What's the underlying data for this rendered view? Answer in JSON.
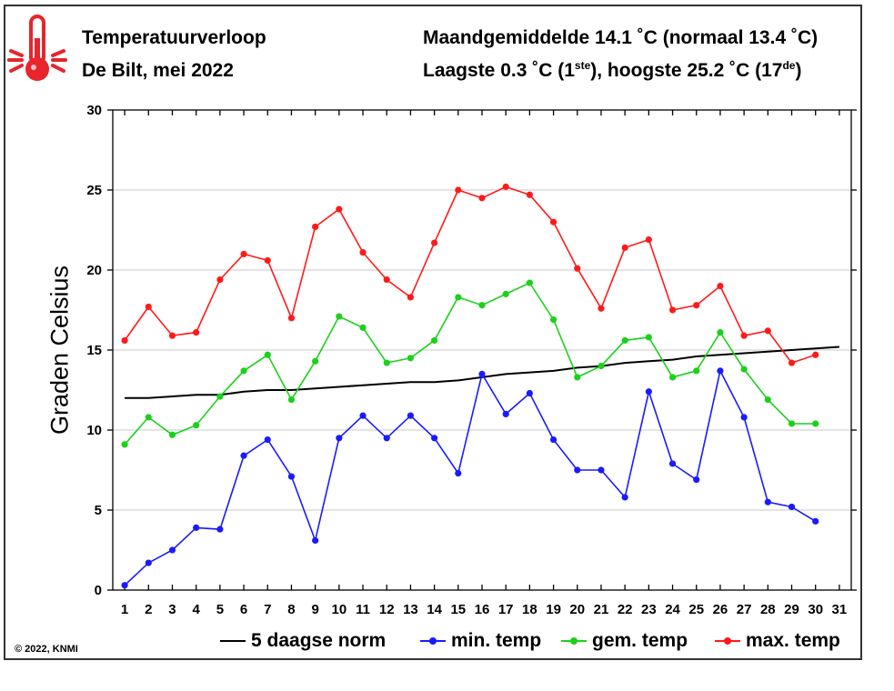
{
  "header": {
    "title": "Temperatuurverloop",
    "subtitle": "De Bilt, mei 2022",
    "summary_line1": "Maandgemiddelde 14.1 ˚C (normaal 13.4 ˚C)",
    "summary_line2_a": "Laagste 0.3 ˚C (1",
    "summary_line2_sup1": "ste",
    "summary_line2_b": "), hoogste 25.2 ˚C (17",
    "summary_line2_sup2": "de",
    "summary_line2_c": ")"
  },
  "icon": {
    "name": "thermometer-icon",
    "color": "#e8242c"
  },
  "copyright": "© 2022, KNMI",
  "legend": {
    "norm": "5 daagse norm",
    "min": "min. temp",
    "gem": "gem. temp",
    "max": "max. temp"
  },
  "chart_data": {
    "type": "line",
    "ylabel": "Graden Celsius",
    "xlabel": "",
    "xlim": [
      0.5,
      31.5
    ],
    "ylim": [
      0,
      30
    ],
    "yticks": [
      0,
      5,
      10,
      15,
      20,
      25,
      30
    ],
    "categories": [
      "1",
      "2",
      "3",
      "4",
      "5",
      "6",
      "7",
      "8",
      "9",
      "10",
      "11",
      "12",
      "13",
      "14",
      "15",
      "16",
      "17",
      "18",
      "19",
      "20",
      "21",
      "22",
      "23",
      "24",
      "25",
      "26",
      "27",
      "28",
      "29",
      "30",
      "31"
    ],
    "grid": true,
    "series": [
      {
        "name": "5 daagse norm",
        "color": "#000000",
        "markers": false,
        "x": [
          1,
          2,
          3,
          4,
          5,
          6,
          7,
          8,
          9,
          10,
          11,
          12,
          13,
          14,
          15,
          16,
          17,
          18,
          19,
          20,
          21,
          22,
          23,
          24,
          25,
          26,
          27,
          28,
          29,
          30,
          31
        ],
        "values": [
          12.0,
          12.0,
          12.1,
          12.2,
          12.2,
          12.4,
          12.5,
          12.5,
          12.6,
          12.7,
          12.8,
          12.9,
          13.0,
          13.0,
          13.1,
          13.3,
          13.5,
          13.6,
          13.7,
          13.9,
          14.0,
          14.2,
          14.3,
          14.4,
          14.6,
          14.7,
          14.8,
          14.9,
          15.0,
          15.1,
          15.2
        ]
      },
      {
        "name": "min. temp",
        "color": "#1a1aff",
        "markers": true,
        "x": [
          1,
          2,
          3,
          4,
          5,
          6,
          7,
          8,
          9,
          10,
          11,
          12,
          13,
          14,
          15,
          16,
          17,
          18,
          19,
          20,
          21,
          22,
          23,
          24,
          25,
          26,
          27,
          28,
          29,
          30
        ],
        "values": [
          0.3,
          1.7,
          2.5,
          3.9,
          3.8,
          8.4,
          9.4,
          7.1,
          3.1,
          9.5,
          10.9,
          9.5,
          10.9,
          9.5,
          7.3,
          13.5,
          11.0,
          12.3,
          9.4,
          7.5,
          7.5,
          5.8,
          12.4,
          7.9,
          6.9,
          13.7,
          10.8,
          5.5,
          5.2,
          4.3
        ]
      },
      {
        "name": "gem. temp",
        "color": "#1bd11b",
        "markers": true,
        "x": [
          1,
          2,
          3,
          4,
          5,
          6,
          7,
          8,
          9,
          10,
          11,
          12,
          13,
          14,
          15,
          16,
          17,
          18,
          19,
          20,
          21,
          22,
          23,
          24,
          25,
          26,
          27,
          28,
          29,
          30
        ],
        "values": [
          9.1,
          10.8,
          9.7,
          10.3,
          12.1,
          13.7,
          14.7,
          11.9,
          14.3,
          17.1,
          16.4,
          14.2,
          14.5,
          15.6,
          18.3,
          17.8,
          18.5,
          19.2,
          16.9,
          13.3,
          14.0,
          15.6,
          15.8,
          13.3,
          13.7,
          16.1,
          13.8,
          11.9,
          10.4,
          10.4
        ]
      },
      {
        "name": "max. temp",
        "color": "#ff1a1a",
        "markers": true,
        "x": [
          1,
          2,
          3,
          4,
          5,
          6,
          7,
          8,
          9,
          10,
          11,
          12,
          13,
          14,
          15,
          16,
          17,
          18,
          19,
          20,
          21,
          22,
          23,
          24,
          25,
          26,
          27,
          28,
          29,
          30
        ],
        "values": [
          15.6,
          17.7,
          15.9,
          16.1,
          19.4,
          21.0,
          20.6,
          17.0,
          22.7,
          23.8,
          21.1,
          19.4,
          18.3,
          21.7,
          25.0,
          24.5,
          25.2,
          24.7,
          23.0,
          20.1,
          17.6,
          21.4,
          21.9,
          17.5,
          17.8,
          19.0,
          15.9,
          16.2,
          14.2,
          14.7
        ]
      }
    ]
  }
}
